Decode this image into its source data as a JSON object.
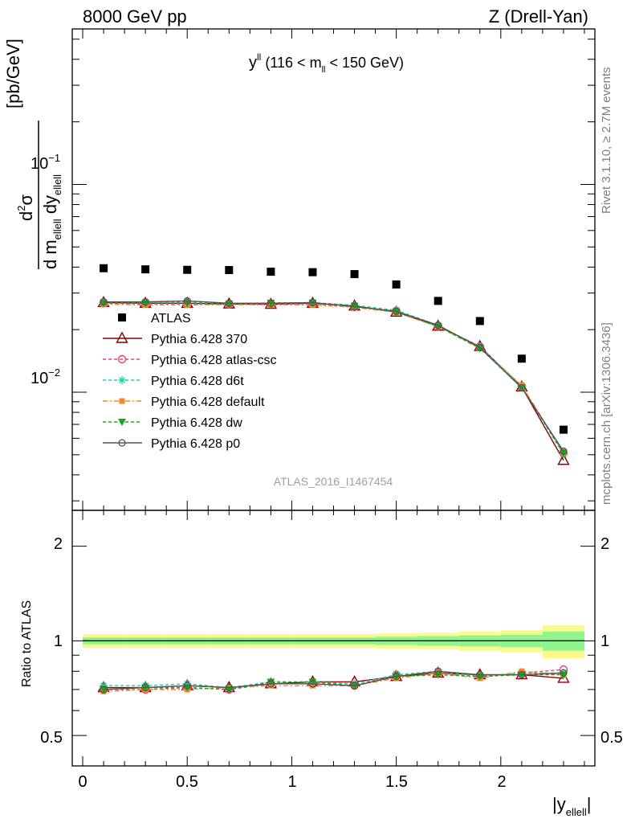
{
  "header": {
    "left": "8000 GeV pp",
    "right": "Z (Drell-Yan)"
  },
  "plot_title": {
    "main": "y",
    "main_sup": "ll",
    "paren_open": "(116 < m",
    "sub": "ll",
    "paren_close": " < 150 GeV)"
  },
  "watermark": "ATLAS_2016_I1467454",
  "side_labels": {
    "rivet": "Rivet 3.1.10, ≥ 2.7M events",
    "mcplots": "mcplots.cern.ch [arXiv:1306.3436]"
  },
  "main_axis": {
    "ylabel_unit": "[pb/GeV]",
    "num": "d",
    "num_sup": "2",
    "num_sigma": "σ",
    "den_dm": "d m",
    "den_m_sub": "ellell",
    "den_dy": " dy",
    "den_y_sub": "ellell",
    "tick_1e2": "10",
    "tick_1e2_exp": "−2",
    "tick_1e1": "10",
    "tick_1e1_exp": "−1"
  },
  "ratio_axis": {
    "ylabel": "Ratio to ATLAS",
    "ticks": [
      "0.5",
      "1",
      "2"
    ]
  },
  "x_axis": {
    "ticks": [
      "0",
      "0.5",
      "1",
      "1.5",
      "2"
    ],
    "label": "|y",
    "label_sub": "ellell",
    "label_end": "|"
  },
  "colors": {
    "atlas": "#000000",
    "p370": "#8b0000",
    "atlas_csc": "#e8456e",
    "d6t": "#1fd1a8",
    "default": "#f5862c",
    "dw": "#1aa81a",
    "p0": "#555555",
    "band_inner": "#8ef58e",
    "band_outer": "#fafa8c"
  },
  "chart_data": {
    "type": "scatter",
    "x": [
      0.1,
      0.3,
      0.5,
      0.7,
      0.9,
      1.1,
      1.3,
      1.5,
      1.7,
      1.9,
      2.1,
      2.3
    ],
    "xlim": [
      -0.05,
      2.45
    ],
    "main_ylim": [
      0.0027,
      0.56
    ],
    "main_log": true,
    "ratio_ylim": [
      0.4,
      2.6
    ],
    "ratio_log": true,
    "legend_position": "middle-left",
    "series": [
      {
        "key": "atlas",
        "name": "ATLAS",
        "marker": "square",
        "values": [
          0.0395,
          0.039,
          0.0388,
          0.0387,
          0.038,
          0.0378,
          0.037,
          0.033,
          0.0275,
          0.022,
          0.0145,
          0.0066
        ]
      },
      {
        "key": "p370",
        "name": "Pythia 6.428 370",
        "marker": "triangle-open",
        "dash": "",
        "values": [
          0.027,
          0.0268,
          0.0268,
          0.0266,
          0.0265,
          0.0268,
          0.026,
          0.0243,
          0.0208,
          0.0166,
          0.0106,
          0.0047
        ]
      },
      {
        "key": "atlas_csc",
        "name": "Pythia 6.428 atlas-csc",
        "marker": "circle-open",
        "dash": "4,3",
        "values": [
          0.0268,
          0.0266,
          0.0266,
          0.0265,
          0.0266,
          0.0266,
          0.0257,
          0.0246,
          0.0208,
          0.0166,
          0.0107,
          0.0051
        ]
      },
      {
        "key": "d6t",
        "name": "Pythia 6.428 d6t",
        "marker": "asterisk",
        "dash": "4,3",
        "values": [
          0.0272,
          0.027,
          0.0272,
          0.0267,
          0.0268,
          0.027,
          0.0262,
          0.0248,
          0.021,
          0.0165,
          0.0107,
          0.005
        ]
      },
      {
        "key": "default",
        "name": "Pythia 6.428 default",
        "marker": "square-small",
        "dash": "6,3,2,3",
        "values": [
          0.0265,
          0.0263,
          0.0263,
          0.0264,
          0.0263,
          0.0263,
          0.0256,
          0.0242,
          0.0207,
          0.0162,
          0.0108,
          0.0051
        ]
      },
      {
        "key": "dw",
        "name": "Pythia 6.428 dw",
        "marker": "triangle-down",
        "dash": "4,3",
        "values": [
          0.0268,
          0.0268,
          0.0268,
          0.0266,
          0.0269,
          0.0269,
          0.026,
          0.0244,
          0.0207,
          0.0163,
          0.0105,
          0.0051
        ]
      },
      {
        "key": "p0",
        "name": "Pythia 6.428 p0",
        "marker": "circle-open-small",
        "dash": "",
        "values": [
          0.0272,
          0.0272,
          0.0275,
          0.0268,
          0.0268,
          0.027,
          0.0258,
          0.0245,
          0.021,
          0.0164,
          0.0105,
          0.0052
        ]
      }
    ],
    "ratio_series": [
      {
        "key": "p370",
        "values": [
          0.71,
          0.71,
          0.72,
          0.71,
          0.73,
          0.74,
          0.74,
          0.77,
          0.79,
          0.78,
          0.78,
          0.76
        ]
      },
      {
        "key": "atlas_csc",
        "values": [
          0.7,
          0.7,
          0.71,
          0.7,
          0.73,
          0.73,
          0.72,
          0.78,
          0.79,
          0.77,
          0.79,
          0.81
        ]
      },
      {
        "key": "d6t",
        "values": [
          0.72,
          0.72,
          0.73,
          0.71,
          0.74,
          0.74,
          0.73,
          0.78,
          0.8,
          0.77,
          0.79,
          0.79
        ]
      },
      {
        "key": "default",
        "values": [
          0.69,
          0.7,
          0.7,
          0.71,
          0.72,
          0.72,
          0.72,
          0.76,
          0.79,
          0.76,
          0.8,
          0.78
        ]
      },
      {
        "key": "dw",
        "values": [
          0.7,
          0.71,
          0.71,
          0.7,
          0.74,
          0.74,
          0.72,
          0.77,
          0.78,
          0.77,
          0.78,
          0.78
        ]
      },
      {
        "key": "p0",
        "values": [
          0.7,
          0.71,
          0.72,
          0.71,
          0.73,
          0.73,
          0.72,
          0.77,
          0.8,
          0.78,
          0.78,
          0.79
        ]
      }
    ],
    "ratio_band": {
      "edges": [
        0.0,
        0.2,
        0.4,
        0.6,
        0.8,
        1.0,
        1.2,
        1.4,
        1.6,
        1.8,
        2.0,
        2.2,
        2.4
      ],
      "inner": [
        0.025,
        0.025,
        0.025,
        0.025,
        0.025,
        0.025,
        0.025,
        0.03,
        0.035,
        0.04,
        0.045,
        0.07
      ],
      "outer": [
        0.05,
        0.05,
        0.05,
        0.05,
        0.05,
        0.05,
        0.05,
        0.055,
        0.06,
        0.07,
        0.08,
        0.12
      ]
    }
  }
}
